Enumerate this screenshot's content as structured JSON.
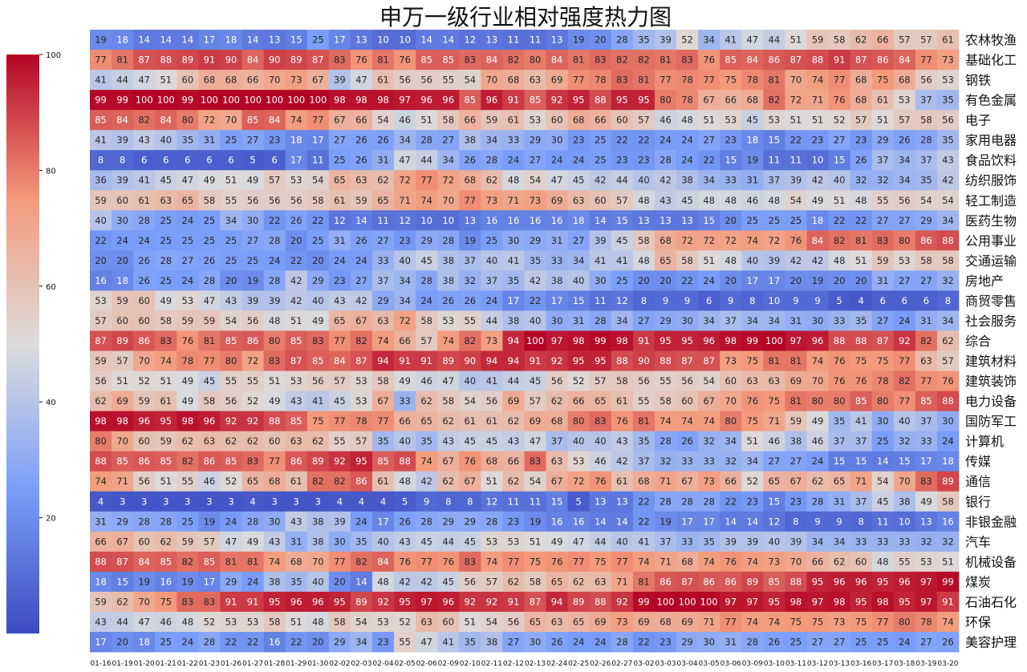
{
  "chart_data": {
    "type": "heatmap",
    "title": "申万一级行业相对强度热力图",
    "colorbar": {
      "min": 0,
      "max": 100,
      "ticks": [
        20,
        40,
        60,
        80,
        100
      ],
      "colormap": "coolwarm"
    },
    "x": [
      "01-16",
      "01-19",
      "01-20",
      "01-21",
      "01-22",
      "01-23",
      "01-26",
      "01-27",
      "01-28",
      "01-29",
      "01-30",
      "02-02",
      "02-03",
      "02-04",
      "02-05",
      "02-06",
      "02-09",
      "02-10",
      "02-11",
      "02-12",
      "02-13",
      "02-24",
      "02-25",
      "02-26",
      "02-27",
      "03-02",
      "03-03",
      "03-04",
      "03-05",
      "03-06",
      "03-09",
      "03-10",
      "03-11",
      "03-12",
      "03-13",
      "03-16",
      "03-17",
      "03-18",
      "03-19",
      "03-20"
    ],
    "y": [
      "农林牧渔",
      "基础化工",
      "钢铁",
      "有色金属",
      "电子",
      "家用电器",
      "食品饮料",
      "纺织服饰",
      "轻工制造",
      "医药生物",
      "公用事业",
      "交通运输",
      "房地产",
      "商贸零售",
      "社会服务",
      "综合",
      "建筑材料",
      "建筑装饰",
      "电力设备",
      "国防军工",
      "计算机",
      "传媒",
      "通信",
      "银行",
      "非银金融",
      "汽车",
      "机械设备",
      "煤炭",
      "石油石化",
      "环保",
      "美容护理"
    ],
    "values": [
      [
        19,
        18,
        14,
        14,
        14,
        17,
        18,
        14,
        13,
        15,
        25,
        17,
        13,
        10,
        10,
        14,
        14,
        12,
        13,
        11,
        11,
        13,
        19,
        20,
        28,
        35,
        39,
        52,
        34,
        41,
        47,
        44,
        51,
        59,
        58,
        62,
        66,
        57,
        57,
        61
      ],
      [
        77,
        81,
        87,
        88,
        89,
        91,
        90,
        84,
        90,
        89,
        87,
        83,
        76,
        81,
        76,
        85,
        85,
        83,
        84,
        82,
        80,
        84,
        81,
        83,
        82,
        82,
        81,
        83,
        76,
        85,
        84,
        86,
        87,
        88,
        91,
        87,
        86,
        84,
        77,
        73
      ],
      [
        41,
        44,
        47,
        51,
        60,
        68,
        68,
        66,
        70,
        73,
        67,
        39,
        47,
        61,
        56,
        56,
        55,
        54,
        70,
        68,
        63,
        69,
        77,
        78,
        83,
        81,
        77,
        78,
        77,
        75,
        78,
        81,
        70,
        74,
        77,
        68,
        75,
        68,
        56,
        53
      ],
      [
        99,
        99,
        100,
        100,
        99,
        100,
        100,
        100,
        100,
        100,
        100,
        98,
        98,
        98,
        97,
        96,
        96,
        85,
        96,
        91,
        85,
        92,
        95,
        88,
        95,
        95,
        80,
        78,
        67,
        66,
        68,
        82,
        72,
        71,
        76,
        68,
        61,
        53,
        37,
        35
      ],
      [
        85,
        84,
        82,
        84,
        80,
        72,
        70,
        85,
        84,
        74,
        77,
        67,
        66,
        54,
        46,
        51,
        58,
        66,
        59,
        61,
        53,
        60,
        68,
        66,
        60,
        57,
        46,
        48,
        51,
        53,
        45,
        53,
        51,
        51,
        52,
        57,
        51,
        57,
        58,
        56
      ],
      [
        41,
        39,
        43,
        40,
        35,
        31,
        25,
        27,
        23,
        18,
        17,
        27,
        26,
        26,
        34,
        28,
        27,
        38,
        34,
        33,
        29,
        30,
        23,
        25,
        22,
        22,
        24,
        24,
        27,
        23,
        18,
        15,
        22,
        23,
        27,
        23,
        29,
        26,
        28,
        35
      ],
      [
        8,
        8,
        6,
        6,
        6,
        6,
        6,
        5,
        6,
        17,
        11,
        25,
        26,
        31,
        47,
        44,
        34,
        26,
        28,
        24,
        27,
        24,
        24,
        25,
        23,
        23,
        28,
        24,
        22,
        15,
        19,
        11,
        11,
        10,
        15,
        26,
        37,
        34,
        37,
        43
      ],
      [
        36,
        39,
        41,
        45,
        47,
        49,
        51,
        49,
        57,
        53,
        54,
        65,
        63,
        62,
        72,
        77,
        72,
        68,
        62,
        48,
        54,
        47,
        45,
        42,
        44,
        40,
        42,
        38,
        34,
        33,
        31,
        37,
        39,
        42,
        40,
        32,
        32,
        34,
        35,
        42
      ],
      [
        59,
        60,
        61,
        63,
        65,
        58,
        55,
        56,
        56,
        56,
        58,
        61,
        59,
        65,
        71,
        74,
        70,
        77,
        73,
        71,
        73,
        69,
        63,
        60,
        57,
        48,
        43,
        45,
        48,
        48,
        46,
        48,
        54,
        49,
        51,
        48,
        55,
        56,
        54,
        54
      ],
      [
        40,
        30,
        28,
        25,
        24,
        25,
        34,
        30,
        22,
        26,
        22,
        12,
        14,
        11,
        12,
        10,
        10,
        13,
        16,
        16,
        16,
        16,
        18,
        14,
        15,
        13,
        13,
        13,
        15,
        20,
        25,
        25,
        25,
        18,
        22,
        22,
        27,
        27,
        29,
        34
      ],
      [
        22,
        24,
        24,
        25,
        25,
        25,
        25,
        27,
        28,
        20,
        25,
        31,
        26,
        27,
        23,
        29,
        28,
        19,
        25,
        30,
        29,
        31,
        27,
        39,
        45,
        58,
        68,
        72,
        72,
        72,
        74,
        72,
        76,
        84,
        82,
        81,
        83,
        80,
        86,
        88
      ],
      [
        20,
        20,
        26,
        28,
        27,
        26,
        25,
        25,
        24,
        22,
        20,
        24,
        24,
        33,
        40,
        45,
        38,
        37,
        40,
        41,
        35,
        33,
        34,
        41,
        41,
        48,
        65,
        58,
        51,
        48,
        40,
        39,
        42,
        42,
        48,
        51,
        59,
        53,
        58,
        58
      ],
      [
        16,
        18,
        26,
        25,
        24,
        28,
        20,
        19,
        28,
        42,
        29,
        23,
        27,
        37,
        34,
        28,
        38,
        32,
        37,
        35,
        42,
        38,
        40,
        30,
        25,
        20,
        20,
        22,
        24,
        20,
        17,
        17,
        20,
        19,
        20,
        20,
        31,
        27,
        27,
        32
      ],
      [
        53,
        59,
        60,
        49,
        53,
        47,
        43,
        39,
        39,
        42,
        40,
        43,
        42,
        29,
        34,
        24,
        26,
        26,
        24,
        17,
        22,
        17,
        15,
        11,
        12,
        8,
        9,
        9,
        6,
        9,
        8,
        10,
        9,
        9,
        5,
        4,
        6,
        6,
        6,
        8
      ],
      [
        57,
        60,
        60,
        58,
        59,
        59,
        54,
        56,
        48,
        51,
        49,
        65,
        67,
        63,
        72,
        58,
        53,
        55,
        44,
        38,
        40,
        30,
        31,
        28,
        34,
        27,
        29,
        30,
        34,
        37,
        34,
        34,
        31,
        30,
        33,
        35,
        27,
        24,
        31,
        34
      ],
      [
        87,
        89,
        86,
        83,
        76,
        81,
        85,
        86,
        80,
        85,
        83,
        77,
        82,
        74,
        66,
        57,
        74,
        82,
        73,
        94,
        100,
        97,
        98,
        99,
        98,
        91,
        95,
        95,
        96,
        98,
        99,
        100,
        97,
        96,
        88,
        88,
        87,
        92,
        82,
        62
      ],
      [
        59,
        57,
        70,
        74,
        78,
        77,
        80,
        72,
        83,
        87,
        85,
        84,
        87,
        94,
        91,
        91,
        89,
        90,
        94,
        94,
        91,
        92,
        95,
        95,
        88,
        90,
        88,
        87,
        87,
        73,
        75,
        81,
        81,
        74,
        76,
        75,
        75,
        77,
        63,
        57
      ],
      [
        56,
        51,
        52,
        51,
        49,
        45,
        55,
        55,
        51,
        53,
        56,
        57,
        53,
        58,
        49,
        46,
        47,
        40,
        41,
        44,
        45,
        56,
        52,
        57,
        58,
        56,
        55,
        56,
        54,
        60,
        63,
        63,
        69,
        70,
        76,
        76,
        78,
        82,
        77,
        76
      ],
      [
        62,
        69,
        59,
        61,
        49,
        58,
        56,
        52,
        49,
        43,
        41,
        45,
        53,
        67,
        33,
        62,
        58,
        54,
        56,
        69,
        57,
        62,
        66,
        65,
        61,
        55,
        58,
        60,
        67,
        70,
        76,
        75,
        81,
        80,
        80,
        85,
        80,
        77,
        85,
        88
      ],
      [
        98,
        98,
        96,
        95,
        98,
        96,
        92,
        92,
        88,
        85,
        75,
        77,
        78,
        77,
        66,
        65,
        62,
        61,
        61,
        62,
        69,
        68,
        80,
        83,
        76,
        81,
        74,
        74,
        74,
        80,
        75,
        71,
        59,
        49,
        35,
        41,
        30,
        40,
        37,
        30
      ],
      [
        80,
        70,
        60,
        59,
        62,
        63,
        62,
        62,
        60,
        63,
        62,
        55,
        57,
        35,
        40,
        35,
        43,
        45,
        45,
        43,
        47,
        37,
        40,
        40,
        43,
        35,
        28,
        26,
        32,
        34,
        51,
        46,
        38,
        46,
        37,
        37,
        25,
        32,
        33,
        24
      ],
      [
        88,
        85,
        86,
        85,
        82,
        86,
        85,
        83,
        77,
        86,
        89,
        92,
        95,
        85,
        88,
        74,
        67,
        76,
        68,
        66,
        83,
        63,
        53,
        46,
        42,
        37,
        32,
        33,
        33,
        32,
        34,
        27,
        27,
        24,
        15,
        15,
        14,
        15,
        17,
        18
      ],
      [
        74,
        71,
        56,
        51,
        55,
        46,
        52,
        65,
        68,
        61,
        82,
        82,
        86,
        61,
        48,
        42,
        62,
        67,
        51,
        62,
        54,
        67,
        72,
        76,
        61,
        68,
        71,
        67,
        73,
        66,
        52,
        65,
        67,
        62,
        65,
        71,
        54,
        70,
        83,
        89
      ],
      [
        4,
        3,
        3,
        3,
        3,
        3,
        3,
        4,
        3,
        3,
        3,
        4,
        4,
        4,
        5,
        9,
        8,
        8,
        12,
        11,
        11,
        15,
        5,
        13,
        13,
        22,
        28,
        28,
        28,
        22,
        23,
        15,
        23,
        28,
        31,
        37,
        45,
        38,
        49,
        58
      ],
      [
        31,
        29,
        28,
        28,
        25,
        19,
        24,
        28,
        30,
        43,
        38,
        39,
        24,
        17,
        26,
        28,
        29,
        29,
        28,
        23,
        19,
        16,
        16,
        14,
        14,
        22,
        19,
        17,
        17,
        14,
        14,
        12,
        8,
        9,
        9,
        8,
        11,
        10,
        13,
        16
      ],
      [
        66,
        67,
        60,
        62,
        59,
        57,
        47,
        49,
        43,
        31,
        38,
        30,
        35,
        40,
        43,
        45,
        44,
        45,
        53,
        53,
        51,
        49,
        47,
        44,
        40,
        41,
        37,
        33,
        35,
        39,
        39,
        40,
        39,
        34,
        34,
        33,
        33,
        33,
        32,
        32
      ],
      [
        88,
        87,
        84,
        85,
        82,
        85,
        81,
        81,
        74,
        68,
        70,
        77,
        82,
        84,
        76,
        77,
        76,
        83,
        74,
        77,
        75,
        76,
        77,
        75,
        77,
        74,
        71,
        68,
        74,
        76,
        74,
        73,
        70,
        66,
        62,
        60,
        48,
        55,
        53,
        51
      ],
      [
        18,
        15,
        19,
        16,
        19,
        17,
        29,
        24,
        38,
        35,
        40,
        20,
        14,
        48,
        42,
        42,
        45,
        56,
        57,
        62,
        58,
        65,
        62,
        63,
        71,
        81,
        86,
        87,
        86,
        86,
        89,
        85,
        88,
        95,
        96,
        96,
        95,
        96,
        97,
        99
      ],
      [
        59,
        62,
        70,
        75,
        83,
        83,
        91,
        91,
        95,
        96,
        96,
        95,
        89,
        92,
        95,
        97,
        96,
        92,
        92,
        91,
        87,
        94,
        89,
        88,
        92,
        99,
        100,
        100,
        100,
        97,
        97,
        95,
        98,
        97,
        98,
        95,
        98,
        95,
        97,
        91
      ],
      [
        43,
        44,
        47,
        46,
        48,
        52,
        53,
        53,
        58,
        51,
        48,
        58,
        54,
        53,
        52,
        63,
        60,
        51,
        54,
        56,
        65,
        63,
        65,
        69,
        73,
        69,
        68,
        69,
        71,
        77,
        74,
        74,
        75,
        75,
        73,
        75,
        77,
        80,
        78,
        74
      ],
      [
        17,
        20,
        18,
        25,
        24,
        28,
        22,
        22,
        16,
        22,
        20,
        29,
        34,
        23,
        55,
        47,
        41,
        35,
        38,
        27,
        30,
        26,
        24,
        24,
        28,
        22,
        23,
        29,
        30,
        31,
        28,
        26,
        25,
        27,
        27,
        25,
        25,
        24,
        27,
        26
      ]
    ]
  }
}
